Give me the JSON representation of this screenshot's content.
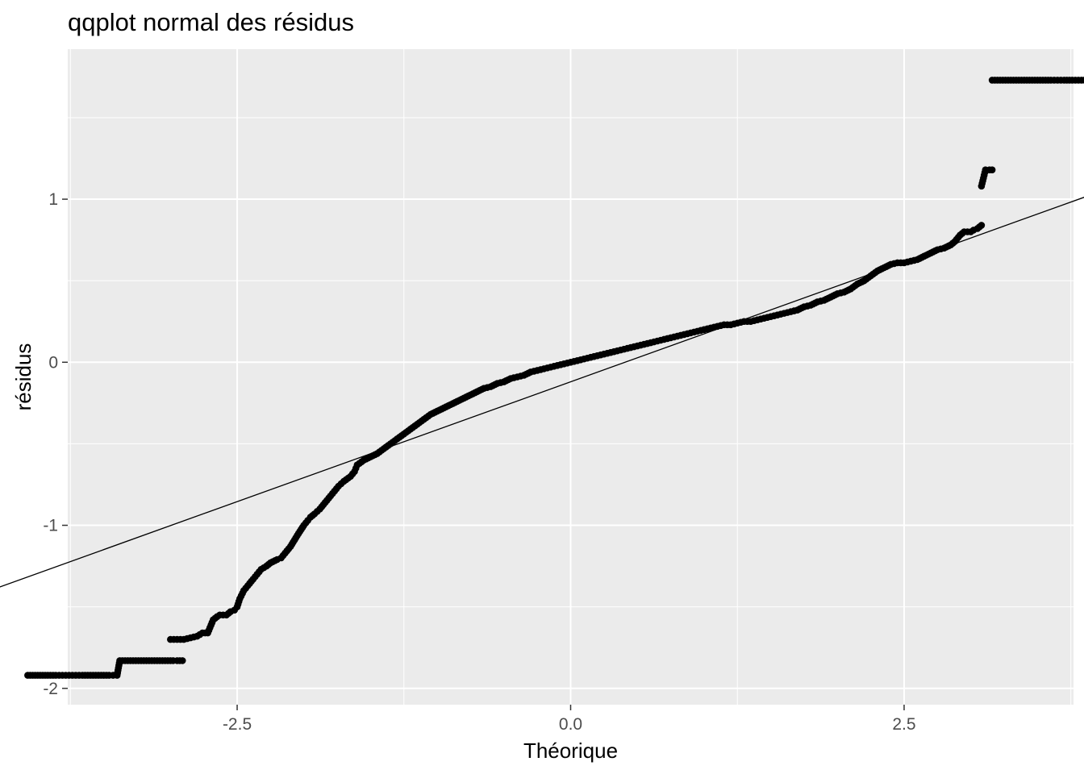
{
  "chart_data": {
    "type": "scatter",
    "title": "qqplot normal des résidus",
    "xlabel": "Théorique",
    "ylabel": "résidus",
    "xlim": [
      -3.77,
      3.77
    ],
    "ylim": [
      -2.1,
      1.92
    ],
    "x_ticks": [
      -2.5,
      0.0,
      2.5
    ],
    "x_tick_labels": [
      "-2.5",
      "0.0",
      "2.5"
    ],
    "y_ticks": [
      -2,
      -1,
      0,
      1
    ],
    "y_tick_labels": [
      "-2",
      "-1",
      "0",
      "1"
    ],
    "grid": true,
    "panel_background": "#ebebeb",
    "grid_color": "#ffffff",
    "point_color": "#000000",
    "reference_line": {
      "x": [
        -4.32,
        4.32
      ],
      "y": [
        -1.39,
        1.15
      ]
    },
    "points": {
      "x": [
        -4.32,
        -4.07,
        -3.92,
        -3.86,
        -3.81,
        -3.76,
        -3.71,
        -3.66,
        -3.62,
        -3.58,
        -3.54,
        -3.5,
        -3.46,
        -3.43,
        -3.4,
        -3.38,
        -3.34,
        -3.3,
        -3.26,
        -3.22,
        -3.18,
        -3.14,
        -3.1,
        -3.06,
        -3.02,
        -2.98,
        -2.95,
        -2.93,
        -2.91,
        -3.0,
        -2.95,
        -2.9,
        -2.85,
        -2.8,
        -2.76,
        -2.72,
        -2.68,
        -2.65,
        -2.63,
        -2.58,
        -2.55,
        -2.52,
        -2.5,
        -2.48,
        -2.45,
        -2.42,
        -2.38,
        -2.35,
        -2.32,
        -2.28,
        -2.25,
        -2.2,
        -2.17,
        -2.14,
        -2.1,
        -2.07,
        -2.04,
        -2.0,
        -1.97,
        -1.95,
        -1.92,
        -1.88,
        -1.84,
        -1.8,
        -1.77,
        -1.74,
        -1.7,
        -1.65,
        -1.62,
        -1.6,
        -1.55,
        -1.5,
        -1.45,
        -1.4,
        -1.35,
        -1.3,
        -1.25,
        -1.2,
        -1.15,
        -1.1,
        -1.05,
        -1.0,
        -0.95,
        -0.9,
        -0.85,
        -0.8,
        -0.75,
        -0.7,
        -0.65,
        -0.6,
        -0.55,
        -0.5,
        -0.45,
        -0.4,
        -0.35,
        -0.3,
        -0.25,
        -0.2,
        -0.15,
        -0.1,
        -0.05,
        0.0,
        0.05,
        0.1,
        0.15,
        0.2,
        0.25,
        0.3,
        0.35,
        0.4,
        0.45,
        0.5,
        0.55,
        0.6,
        0.65,
        0.7,
        0.75,
        0.8,
        0.85,
        0.9,
        0.95,
        1.0,
        1.05,
        1.1,
        1.15,
        1.2,
        1.25,
        1.3,
        1.35,
        1.4,
        1.45,
        1.5,
        1.55,
        1.6,
        1.65,
        1.7,
        1.75,
        1.8,
        1.85,
        1.9,
        1.95,
        2.0,
        2.05,
        2.1,
        2.15,
        2.2,
        2.25,
        2.3,
        2.35,
        2.4,
        2.45,
        2.5,
        2.55,
        2.6,
        2.65,
        2.7,
        2.75,
        2.8,
        2.85,
        2.88,
        2.92,
        2.95,
        3.0,
        3.02,
        3.05,
        3.08,
        3.08,
        3.11,
        3.14,
        3.16,
        3.16,
        3.2,
        3.24,
        3.28,
        3.32,
        3.36,
        3.4,
        3.44,
        3.48,
        3.52,
        3.56,
        3.6,
        3.65,
        3.7,
        3.76,
        3.83,
        3.92,
        4.07,
        4.32
      ],
      "y": [
        -1.92,
        -1.92,
        -1.92,
        -1.92,
        -1.92,
        -1.92,
        -1.92,
        -1.92,
        -1.92,
        -1.92,
        -1.92,
        -1.92,
        -1.92,
        -1.92,
        -1.92,
        -1.83,
        -1.83,
        -1.83,
        -1.83,
        -1.83,
        -1.83,
        -1.83,
        -1.83,
        -1.83,
        -1.83,
        -1.83,
        -1.83,
        -1.83,
        -1.83,
        -1.7,
        -1.7,
        -1.7,
        -1.69,
        -1.68,
        -1.66,
        -1.66,
        -1.58,
        -1.56,
        -1.55,
        -1.55,
        -1.53,
        -1.52,
        -1.5,
        -1.45,
        -1.4,
        -1.37,
        -1.33,
        -1.3,
        -1.27,
        -1.25,
        -1.23,
        -1.21,
        -1.2,
        -1.17,
        -1.13,
        -1.09,
        -1.05,
        -1.0,
        -0.97,
        -0.95,
        -0.93,
        -0.9,
        -0.86,
        -0.82,
        -0.79,
        -0.76,
        -0.73,
        -0.7,
        -0.67,
        -0.63,
        -0.6,
        -0.58,
        -0.56,
        -0.53,
        -0.5,
        -0.47,
        -0.44,
        -0.41,
        -0.38,
        -0.35,
        -0.32,
        -0.3,
        -0.28,
        -0.26,
        -0.24,
        -0.22,
        -0.2,
        -0.18,
        -0.16,
        -0.15,
        -0.13,
        -0.12,
        -0.1,
        -0.09,
        -0.08,
        -0.06,
        -0.05,
        -0.04,
        -0.03,
        -0.02,
        -0.01,
        0.0,
        0.01,
        0.02,
        0.03,
        0.04,
        0.05,
        0.06,
        0.07,
        0.08,
        0.09,
        0.1,
        0.11,
        0.12,
        0.13,
        0.14,
        0.15,
        0.16,
        0.17,
        0.18,
        0.19,
        0.2,
        0.21,
        0.22,
        0.23,
        0.23,
        0.24,
        0.25,
        0.25,
        0.26,
        0.27,
        0.28,
        0.29,
        0.3,
        0.31,
        0.32,
        0.34,
        0.35,
        0.37,
        0.38,
        0.4,
        0.42,
        0.43,
        0.45,
        0.48,
        0.5,
        0.53,
        0.56,
        0.58,
        0.6,
        0.61,
        0.61,
        0.62,
        0.63,
        0.65,
        0.67,
        0.69,
        0.7,
        0.72,
        0.74,
        0.78,
        0.8,
        0.8,
        0.81,
        0.82,
        0.84,
        1.08,
        1.18,
        1.18,
        1.18,
        1.73,
        1.73,
        1.73,
        1.73,
        1.73,
        1.73,
        1.73,
        1.73,
        1.73,
        1.73,
        1.73,
        1.73,
        1.73,
        1.73,
        1.73,
        1.73,
        1.73,
        1.73,
        1.73
      ]
    }
  }
}
